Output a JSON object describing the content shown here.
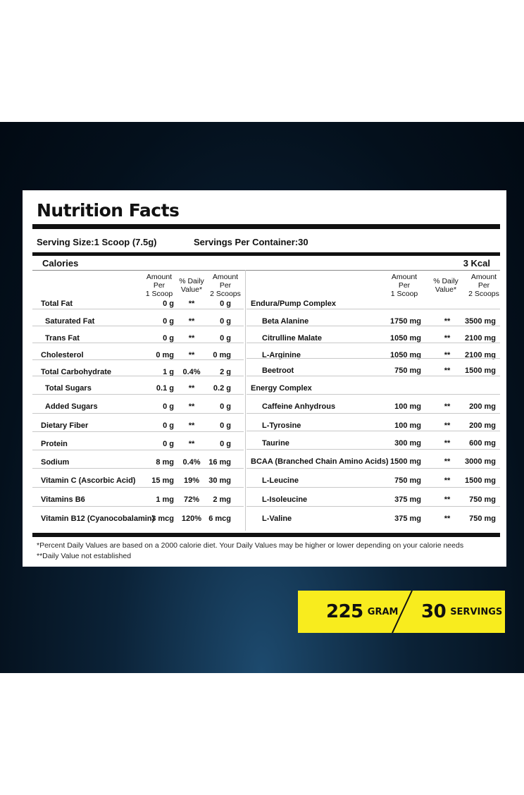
{
  "title": "Nutrition Facts",
  "serving_size": "Serving Size:1 Scoop (7.5g)",
  "servings_per_container": "Servings Per Container:30",
  "calories_label": "Calories",
  "calories_value": "3 Kcal",
  "headers": {
    "amount_1": [
      "Amount",
      "Per",
      "1 Scoop"
    ],
    "daily_value": [
      "% Daily",
      "Value*"
    ],
    "amount_2": [
      "Amount",
      "Per",
      "2 Scoops"
    ]
  },
  "left_rows": [
    {
      "name": "Total Fat",
      "a1": "0 g",
      "dv": "**",
      "a2": "0 g",
      "indent": 0,
      "bold": false
    },
    {
      "name": "Saturated Fat",
      "a1": "0 g",
      "dv": "**",
      "a2": "0 g",
      "indent": 1,
      "bold": false
    },
    {
      "name": "Trans Fat",
      "a1": "0 g",
      "dv": "**",
      "a2": "0 g",
      "indent": 1,
      "bold": false
    },
    {
      "name": "Cholesterol",
      "a1": "0 mg",
      "dv": "**",
      "a2": "0 mg",
      "indent": 0,
      "bold": false
    },
    {
      "name": "Total Carbohydrate",
      "a1": "1 g",
      "dv": "0.4%",
      "a2": "2 g",
      "indent": 0,
      "bold": true
    },
    {
      "name": "Total Sugars",
      "a1": "0.1 g",
      "dv": "**",
      "a2": "0.2 g",
      "indent": 1,
      "bold": false
    },
    {
      "name": "Added Sugars",
      "a1": "0 g",
      "dv": "**",
      "a2": "0 g",
      "indent": 1,
      "bold": false
    },
    {
      "name": "Dietary Fiber",
      "a1": "0 g",
      "dv": "**",
      "a2": "0 g",
      "indent": 0,
      "bold": false
    },
    {
      "name": "Protein",
      "a1": "0 g",
      "dv": "**",
      "a2": "0 g",
      "indent": 0,
      "bold": false
    },
    {
      "name": "Sodium",
      "a1": "8 mg",
      "dv": "0.4%",
      "a2": "16 mg",
      "indent": 0,
      "bold": false
    },
    {
      "name": "Vitamin C (Ascorbic Acid)",
      "a1": "15 mg",
      "dv": "19%",
      "a2": "30 mg",
      "indent": 0,
      "bold": false
    },
    {
      "name": "Vitamins B6",
      "a1": "1 mg",
      "dv": "72%",
      "a2": "2 mg",
      "indent": 0,
      "bold": false
    },
    {
      "name": "Vitamin B12 (Cyanocobalamin)",
      "a1": "3 mcg",
      "dv": "120%",
      "a2": "6 mcg",
      "indent": 0,
      "bold": false
    }
  ],
  "right_rows": [
    {
      "name": "Endura/Pump Complex",
      "a1": "",
      "dv": "",
      "a2": "",
      "indent": 0
    },
    {
      "name": "Beta Alanine",
      "a1": "1750 mg",
      "dv": "**",
      "a2": "3500 mg",
      "indent": 1
    },
    {
      "name": "Citrulline Malate",
      "a1": "1050 mg",
      "dv": "**",
      "a2": "2100 mg",
      "indent": 1
    },
    {
      "name": "L-Arginine",
      "a1": "1050 mg",
      "dv": "**",
      "a2": "2100 mg",
      "indent": 1
    },
    {
      "name": "Beetroot",
      "a1": "750 mg",
      "dv": "**",
      "a2": "1500 mg",
      "indent": 1
    },
    {
      "name": "Energy Complex",
      "a1": "",
      "dv": "",
      "a2": "",
      "indent": 0
    },
    {
      "name": "Caffeine Anhydrous",
      "a1": "100 mg",
      "dv": "**",
      "a2": "200 mg",
      "indent": 1
    },
    {
      "name": "L-Tyrosine",
      "a1": "100 mg",
      "dv": "**",
      "a2": "200 mg",
      "indent": 1
    },
    {
      "name": "Taurine",
      "a1": "300 mg",
      "dv": "**",
      "a2": "600 mg",
      "indent": 1
    },
    {
      "name": "BCAA (Branched Chain Amino Acids)",
      "a1": "1500 mg",
      "dv": "**",
      "a2": "3000 mg",
      "indent": 0
    },
    {
      "name": "L-Leucine",
      "a1": "750 mg",
      "dv": "**",
      "a2": "1500 mg",
      "indent": 1
    },
    {
      "name": "L-Isoleucine",
      "a1": "375 mg",
      "dv": "**",
      "a2": "750 mg",
      "indent": 1
    },
    {
      "name": "L-Valine",
      "a1": "375 mg",
      "dv": "**",
      "a2": "750 mg",
      "indent": 1
    }
  ],
  "footnotes": [
    "*Percent Daily Values are based on a 2000 calorie diet. Your Daily Values may be  higher or lower depending on your calorie needs",
    "**Daily Value not established"
  ],
  "badge": {
    "weight_number": "225",
    "weight_unit": "GRAM",
    "servings_number": "30",
    "servings_unit": "SERVINGS"
  },
  "colors": {
    "banner_dark": "#04101c",
    "badge_yellow": "#f8ec1e",
    "text": "#111111"
  }
}
